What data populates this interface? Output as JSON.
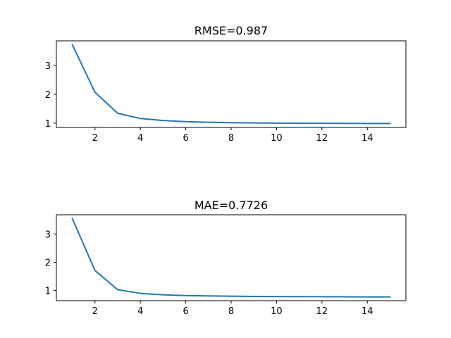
{
  "colors": {
    "series": "#1f77b4"
  },
  "chart_data": [
    {
      "type": "line",
      "title": "RMSE=0.987",
      "xlabel": "",
      "ylabel": "",
      "xlim": [
        0.3,
        15.7
      ],
      "ylim": [
        0.85,
        3.85
      ],
      "xticks": [
        2,
        4,
        6,
        8,
        10,
        12,
        14
      ],
      "yticks": [
        1,
        2,
        3
      ],
      "grid": false,
      "series": [
        {
          "x": [
            1,
            2,
            3,
            4,
            5,
            6,
            7,
            8,
            9,
            10,
            11,
            12,
            13,
            14,
            15
          ],
          "values": [
            3.72,
            2.07,
            1.34,
            1.16,
            1.09,
            1.05,
            1.03,
            1.015,
            1.005,
            1.0,
            0.997,
            0.993,
            0.99,
            0.988,
            0.987
          ]
        }
      ]
    },
    {
      "type": "line",
      "title": "MAE=0.7726",
      "xlabel": "",
      "ylabel": "",
      "xlim": [
        0.3,
        15.7
      ],
      "ylim": [
        0.64,
        3.68
      ],
      "xticks": [
        2,
        4,
        6,
        8,
        10,
        12,
        14
      ],
      "yticks": [
        1,
        2,
        3
      ],
      "grid": false,
      "series": [
        {
          "x": [
            1,
            2,
            3,
            4,
            5,
            6,
            7,
            8,
            9,
            10,
            11,
            12,
            13,
            14,
            15
          ],
          "values": [
            3.55,
            1.71,
            1.03,
            0.9,
            0.85,
            0.82,
            0.808,
            0.798,
            0.79,
            0.786,
            0.782,
            0.779,
            0.776,
            0.774,
            0.7726
          ]
        }
      ]
    }
  ]
}
